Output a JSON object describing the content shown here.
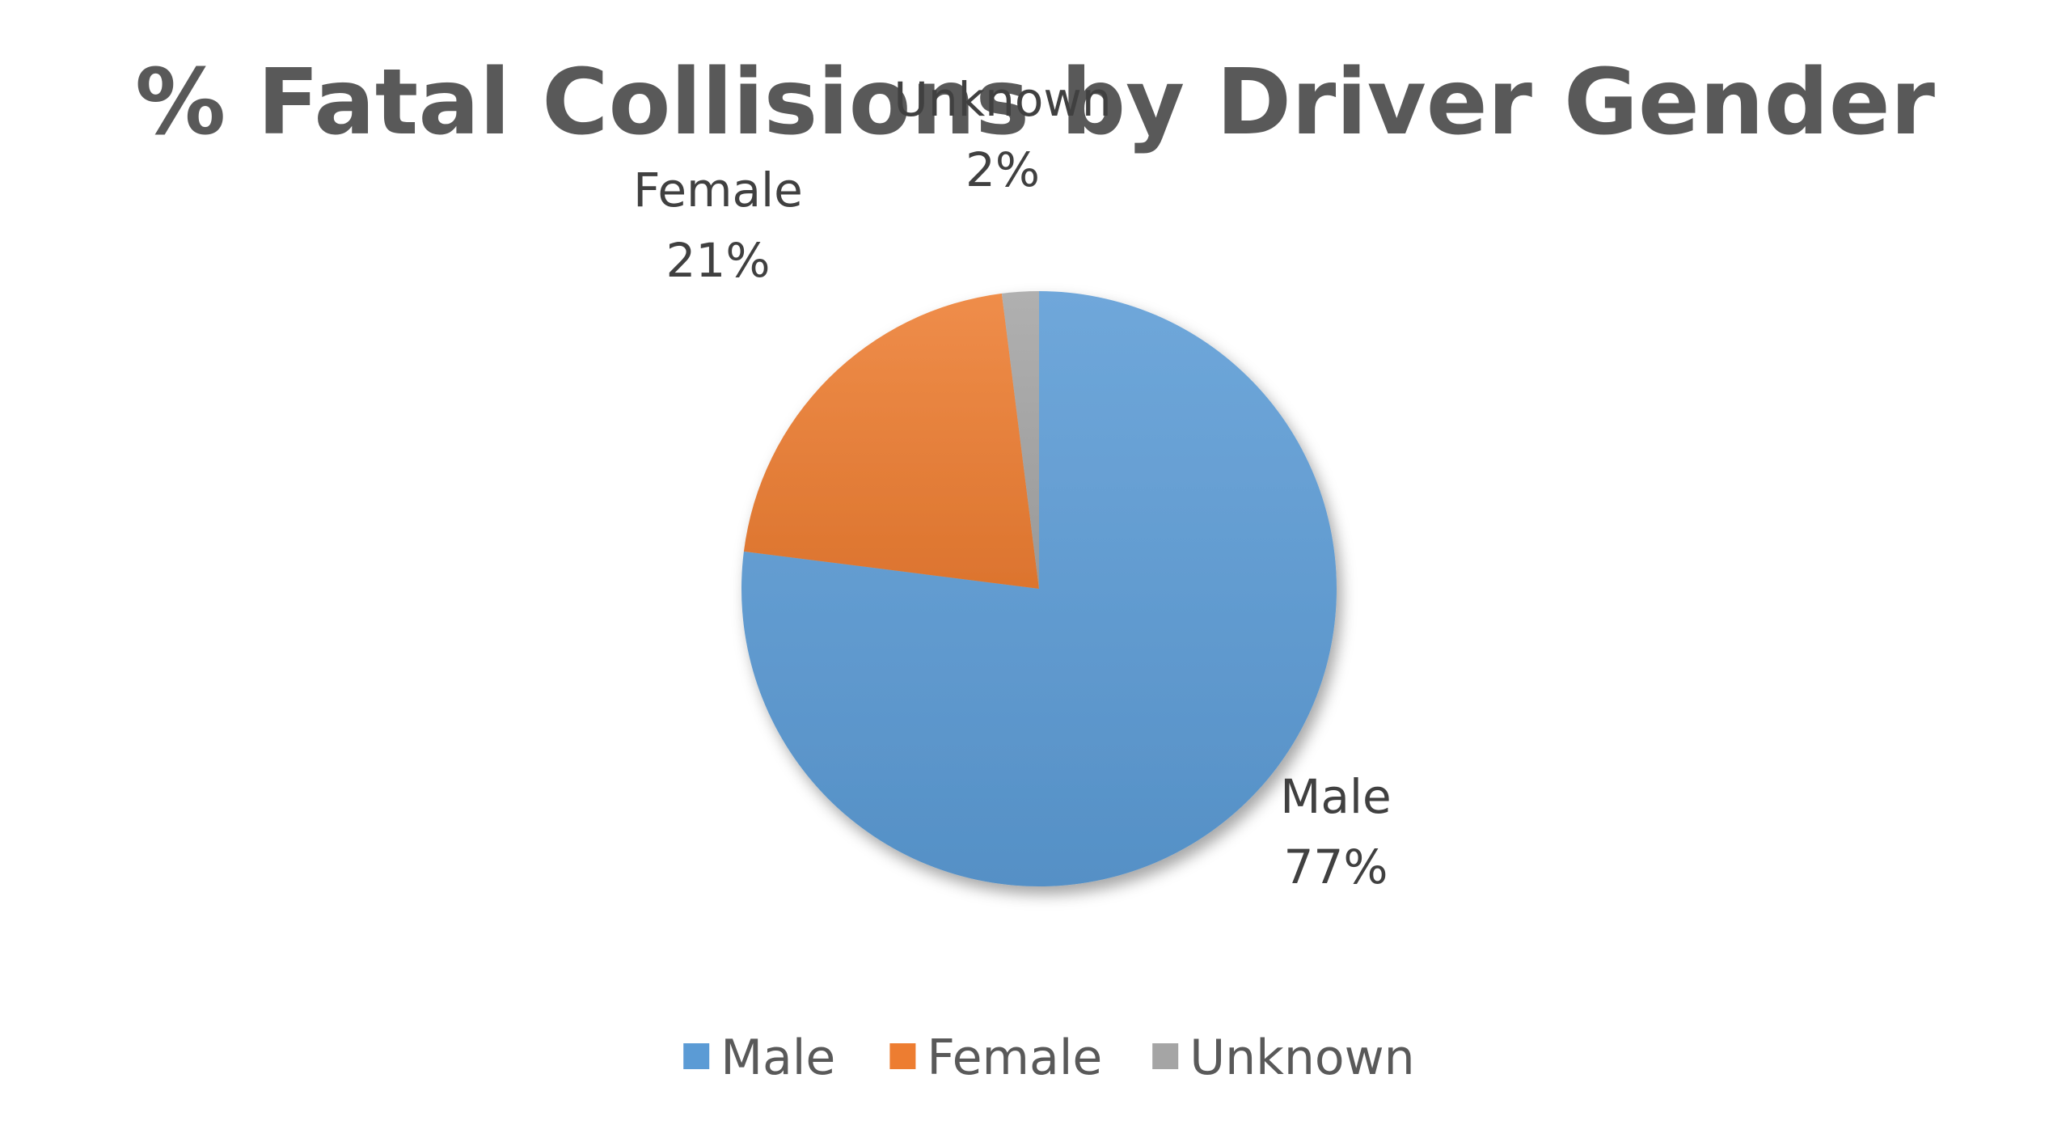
{
  "chart_data": {
    "type": "pie",
    "title": "% Fatal Collisions by Driver Gender",
    "categories": [
      "Male",
      "Female",
      "Unknown"
    ],
    "values": [
      77,
      21,
      2
    ],
    "value_labels": [
      "77%",
      "21%",
      "2%"
    ],
    "unit": "%",
    "colors": [
      "#5b9bd5",
      "#ed7d31",
      "#a5a5a5"
    ],
    "start_angle_deg": 0,
    "direction": "clockwise",
    "legend": {
      "position": "bottom",
      "entries": [
        "Male",
        "Female",
        "Unknown"
      ]
    },
    "data_labels": "outside-end"
  }
}
